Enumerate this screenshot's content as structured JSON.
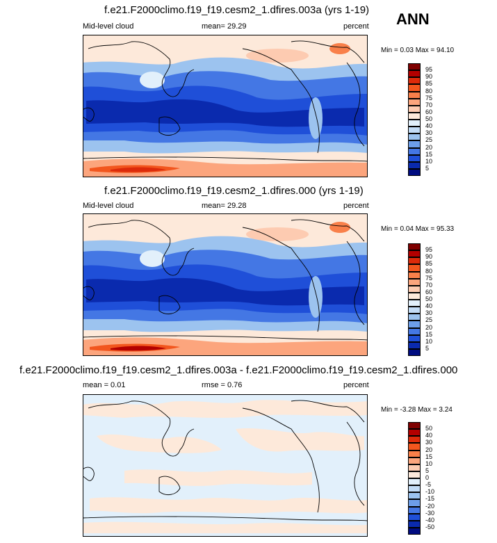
{
  "season": "ANN",
  "panels": [
    {
      "title": "f.e21.F2000climo.f19_f19.cesm2_1.dfires.003a (yrs 1-19)",
      "left_label": "Mid-level cloud",
      "center_label": "mean=  29.29",
      "right_label": "percent",
      "minmax": "Min =   0.03 Max =  94.10",
      "colorbar": {
        "levels": [
          "95",
          "90",
          "85",
          "80",
          "75",
          "70",
          "60",
          "50",
          "40",
          "30",
          "25",
          "20",
          "15",
          "10",
          "5"
        ],
        "colors": [
          "#7f0000",
          "#b30000",
          "#dc2a0a",
          "#f2561e",
          "#f9804a",
          "#fca57d",
          "#fdcbb1",
          "#fde9da",
          "#e2f0fb",
          "#c3dcf6",
          "#9cc3ef",
          "#6d9ee9",
          "#4477e4",
          "#1f4fd8",
          "#0a2aae",
          "#000c80"
        ]
      },
      "map_style": "abs"
    },
    {
      "title": "f.e21.F2000climo.f19_f19.cesm2_1.dfires.000 (yrs 1-19)",
      "left_label": "Mid-level cloud",
      "center_label": "mean=  29.28",
      "right_label": "percent",
      "minmax": "Min =   0.04 Max =  95.33",
      "colorbar": {
        "levels": [
          "95",
          "90",
          "85",
          "80",
          "75",
          "70",
          "60",
          "50",
          "40",
          "30",
          "25",
          "20",
          "15",
          "10",
          "5"
        ],
        "colors": [
          "#7f0000",
          "#b30000",
          "#dc2a0a",
          "#f2561e",
          "#f9804a",
          "#fca57d",
          "#fdcbb1",
          "#fde9da",
          "#e2f0fb",
          "#c3dcf6",
          "#9cc3ef",
          "#6d9ee9",
          "#4477e4",
          "#1f4fd8",
          "#0a2aae",
          "#000c80"
        ]
      },
      "map_style": "abs"
    },
    {
      "title": "f.e21.F2000climo.f19_f19.cesm2_1.dfires.003a - f.e21.F2000climo.f19_f19.cesm2_1.dfires.000",
      "left_label": "mean =   0.01",
      "center_label": "rmse =   0.76",
      "right_label": "percent",
      "minmax": "Min =  -3.28 Max =   3.24",
      "colorbar": {
        "levels": [
          "50",
          "40",
          "30",
          "20",
          "15",
          "10",
          "5",
          "0",
          "-5",
          "-10",
          "-15",
          "-20",
          "-30",
          "-40",
          "-50"
        ],
        "colors": [
          "#7f0000",
          "#b30000",
          "#dc2a0a",
          "#f2561e",
          "#f9804a",
          "#fca57d",
          "#fdcbb1",
          "#fde9da",
          "#e2f0fb",
          "#c3dcf6",
          "#9cc3ef",
          "#6d9ee9",
          "#4477e4",
          "#1f4fd8",
          "#0a2aae",
          "#000c80"
        ]
      },
      "map_style": "diff"
    }
  ]
}
